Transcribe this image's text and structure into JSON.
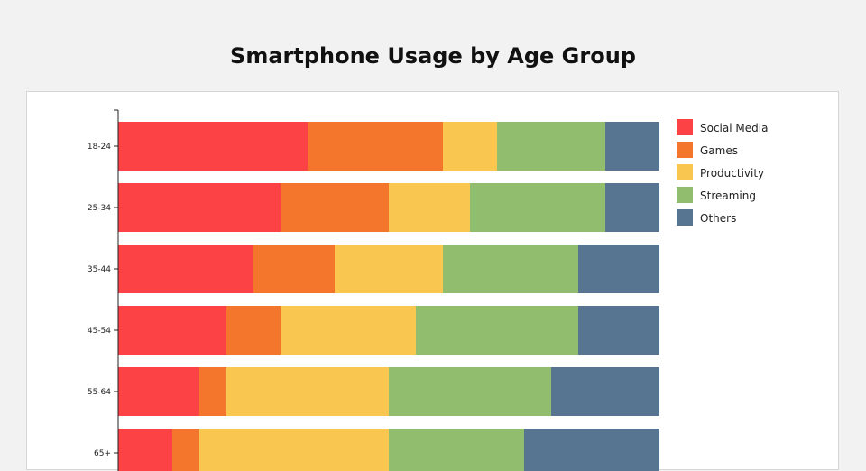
{
  "title": "Smartphone Usage by Age Group",
  "colors": {
    "Social Media": "#fc4245",
    "Games": "#f4752c",
    "Productivity": "#f9c750",
    "Streaming": "#91bd6e",
    "Others": "#577590"
  },
  "chart_data": {
    "type": "bar",
    "orientation": "horizontal",
    "stacked": true,
    "title": "Smartphone Usage by Age Group",
    "xlabel": "",
    "ylabel": "",
    "xlim": [
      0,
      100
    ],
    "grid": false,
    "legend_position": "right",
    "categories": [
      "18-24",
      "25-34",
      "35-44",
      "45-54",
      "55-64",
      "65+"
    ],
    "series": [
      {
        "name": "Social Media",
        "values": [
          35,
          30,
          25,
          20,
          15,
          10
        ]
      },
      {
        "name": "Games",
        "values": [
          25,
          20,
          15,
          10,
          5,
          5
        ]
      },
      {
        "name": "Productivity",
        "values": [
          10,
          15,
          20,
          25,
          30,
          35
        ]
      },
      {
        "name": "Streaming",
        "values": [
          20,
          25,
          25,
          30,
          30,
          25
        ]
      },
      {
        "name": "Others",
        "values": [
          10,
          10,
          15,
          15,
          20,
          25
        ]
      }
    ]
  }
}
